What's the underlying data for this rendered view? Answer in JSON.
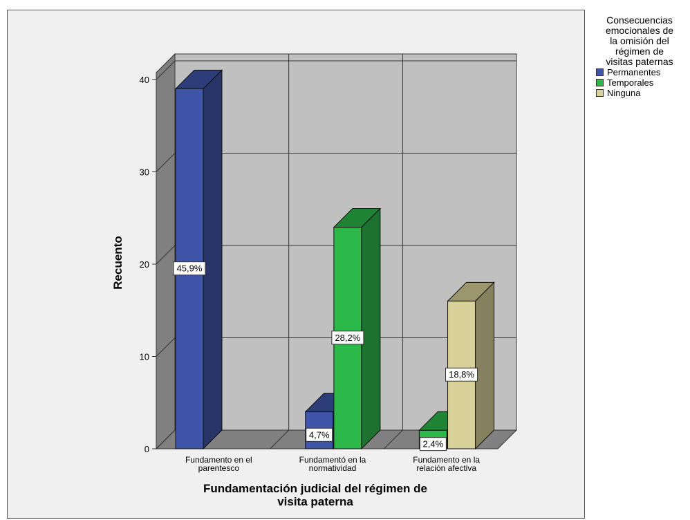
{
  "chart_data": {
    "type": "bar",
    "ylabel": "Recuento",
    "xlabel": "Fundamentación judicial del régimen de visita paterna",
    "ylim": [
      0,
      40
    ],
    "yticks": [
      0,
      10,
      20,
      30,
      40
    ],
    "grid": true,
    "legend_position": "right",
    "legend_title": "Consecuencias emocionales de la omisión del régimen de visitas paternas",
    "categories": [
      "Fundamento en el parentesco",
      "Fundamentó en la normatividad",
      "Fundamento en la relación afectiva"
    ],
    "series": [
      {
        "name": "Permanentes",
        "color": "#3f55a8",
        "values": [
          39,
          4,
          null
        ],
        "labels": [
          "45,9%",
          "4,7%",
          ""
        ]
      },
      {
        "name": "Temporales",
        "color": "#2db84a",
        "values": [
          null,
          24,
          2
        ],
        "labels": [
          "",
          "28,2%",
          "2,4%"
        ]
      },
      {
        "name": "Ninguna",
        "color": "#d8d19a",
        "values": [
          null,
          null,
          16
        ],
        "labels": [
          "",
          "",
          "18,8%"
        ]
      }
    ],
    "category_lines": [
      [
        "Fundamento en el",
        "parentesco"
      ],
      [
        "Fundamentó en la",
        "normatividad"
      ],
      [
        "Fundamento en la",
        "relación afectiva"
      ]
    ],
    "xlabel_lines": [
      "Fundamentación judicial del régimen de",
      "visita paterna"
    ],
    "legend_title_lines": [
      "Consecuencias",
      "emocionales de",
      "la omisión del",
      "régimen de",
      "visitas paternas"
    ]
  }
}
